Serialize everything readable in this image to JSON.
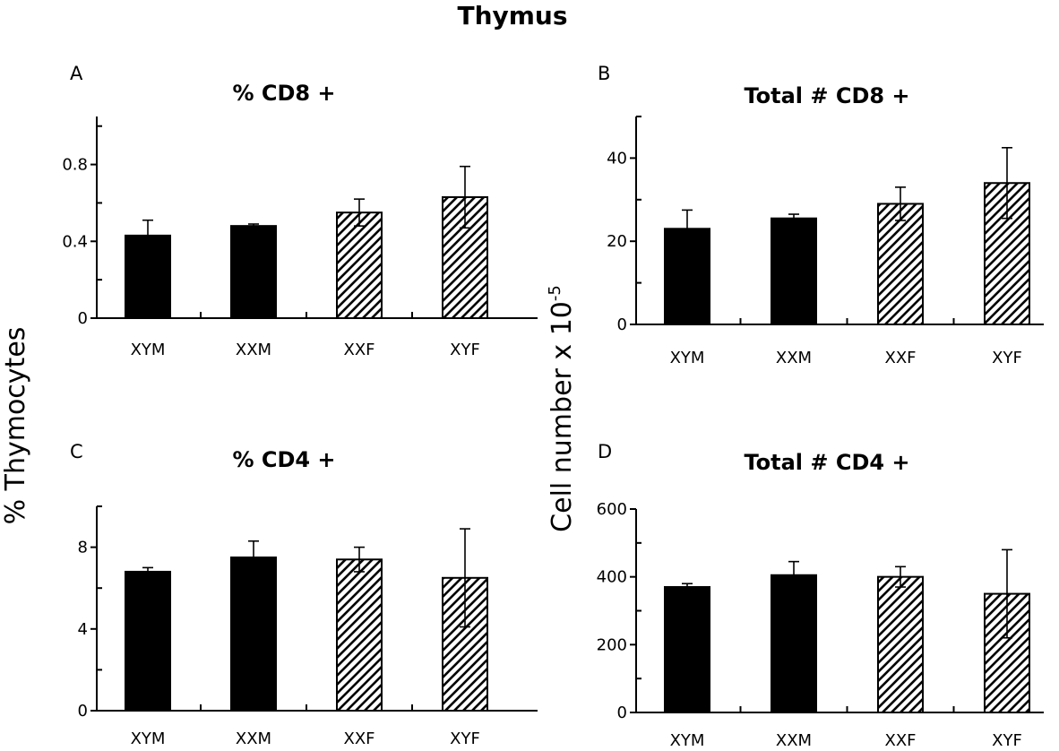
{
  "figure_title": "Thymus",
  "y_labels": {
    "left": "% Thymocytes",
    "right_base": "Cell number x 10",
    "right_exponent": "-5"
  },
  "colors": {
    "solid": "#000000",
    "hatch": "#000000",
    "axis": "#000000",
    "background": "#ffffff"
  },
  "chart_data": [
    {
      "id": "A",
      "type": "bar",
      "letter": "A",
      "title": "% CD8 +",
      "categories": [
        "XYM",
        "XXM",
        "XXF",
        "XYF"
      ],
      "values": [
        0.43,
        0.48,
        0.55,
        0.63
      ],
      "errors": [
        0.08,
        0.01,
        0.07,
        0.16
      ],
      "fills": [
        "solid",
        "solid",
        "hatched",
        "hatched"
      ],
      "ylim": [
        0,
        1.05
      ],
      "ticks": [
        0,
        0.4,
        0.8
      ],
      "tick_labels": [
        "0",
        "0.4",
        "0.8"
      ],
      "minor_ticks": [
        0.2,
        0.6,
        1.0
      ],
      "ylabel": "% Thymocytes"
    },
    {
      "id": "B",
      "type": "bar",
      "letter": "B",
      "title": "Total # CD8 +",
      "categories": [
        "XYM",
        "XXM",
        "XXF",
        "XYF"
      ],
      "values": [
        23,
        25.5,
        29,
        34
      ],
      "errors": [
        4.5,
        1,
        4,
        8.5
      ],
      "fills": [
        "solid",
        "solid",
        "hatched",
        "hatched"
      ],
      "ylim": [
        0,
        50
      ],
      "ticks": [
        0,
        20,
        40
      ],
      "tick_labels": [
        "0",
        "20",
        "40"
      ],
      "minor_ticks": [
        10,
        30,
        50
      ],
      "ylabel": "Cell number x 10-5"
    },
    {
      "id": "C",
      "type": "bar",
      "letter": "C",
      "title": "% CD4 +",
      "categories": [
        "XYM",
        "XXM",
        "XXF",
        "XYF"
      ],
      "values": [
        6.8,
        7.5,
        7.4,
        6.5
      ],
      "errors": [
        0.2,
        0.8,
        0.6,
        2.4
      ],
      "fills": [
        "solid",
        "solid",
        "hatched",
        "hatched"
      ],
      "ylim": [
        0,
        10
      ],
      "ticks": [
        0,
        4,
        8
      ],
      "tick_labels": [
        "0",
        "4",
        "8"
      ],
      "minor_ticks": [
        2,
        6,
        10
      ],
      "ylabel": "% Thymocytes"
    },
    {
      "id": "D",
      "type": "bar",
      "letter": "D",
      "title": "Total # CD4 +",
      "categories": [
        "XYM",
        "XXM",
        "XXF",
        "XYF"
      ],
      "values": [
        370,
        405,
        400,
        350
      ],
      "errors": [
        10,
        40,
        30,
        130
      ],
      "fills": [
        "solid",
        "solid",
        "hatched",
        "hatched"
      ],
      "ylim": [
        0,
        600
      ],
      "ticks": [
        0,
        200,
        400,
        600
      ],
      "tick_labels": [
        "0",
        "200",
        "400",
        "600"
      ],
      "minor_ticks": [
        100,
        300,
        500
      ],
      "ylabel": "Cell number x 10-5"
    }
  ]
}
